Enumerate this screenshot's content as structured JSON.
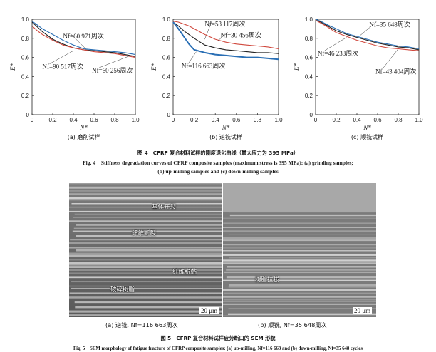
{
  "figure4": {
    "caption_cn": "图 4　CFRP 复合材料试样的刚度退化曲线（最大应力为 395 MPa）",
    "caption_en_line1": "Fig. 4　Stiffness degradation curves of CFRP composite samples (maximum stress is 395 MPa): (a) grinding samples;",
    "caption_en_line2": "(b) up-milling samples and (c) down-milling samples",
    "panels": [
      {
        "caption": "(a) 磨削试样",
        "xlabel": "N*",
        "ylabel": "E*",
        "annotations": [
          "Nf=60 971周次",
          "Nf=90 517周次",
          "Nf=60 256周次"
        ]
      },
      {
        "caption": "(b) 逆铣试样",
        "xlabel": "N*",
        "ylabel": "E*",
        "annotations": [
          "Nf=53 117周次",
          "Nf=30 456周次",
          "Nf=116 663周次"
        ]
      },
      {
        "caption": "(c) 顺铣试样",
        "xlabel": "N*",
        "ylabel": "E*",
        "annotations": [
          "Nf=35 648周次",
          "Nf=46 233周次",
          "Nf=43 404周次"
        ]
      }
    ],
    "yticks": [
      "0",
      "0.2",
      "0.4",
      "0.6",
      "0.8",
      "1.0"
    ],
    "xticks": [
      "0",
      "0.2",
      "0.4",
      "0.6",
      "0.8",
      "1.0"
    ]
  },
  "chart_data": [
    {
      "type": "line",
      "xlabel": "N*",
      "ylabel": "E*",
      "xlim": [
        0,
        1
      ],
      "ylim": [
        0,
        1
      ],
      "series": [
        {
          "name": "Nf=60 971周次",
          "color": "#2a6fb5",
          "x": [
            0,
            0.05,
            0.1,
            0.2,
            0.3,
            0.4,
            0.5,
            0.6,
            0.7,
            0.8,
            0.9,
            1.0
          ],
          "y": [
            0.98,
            0.94,
            0.9,
            0.84,
            0.78,
            0.73,
            0.69,
            0.68,
            0.67,
            0.66,
            0.65,
            0.63
          ]
        },
        {
          "name": "Nf=90 517周次",
          "color": "#222222",
          "x": [
            0,
            0.05,
            0.1,
            0.2,
            0.3,
            0.4,
            0.5,
            0.6,
            0.7,
            0.8,
            0.9,
            1.0
          ],
          "y": [
            0.97,
            0.92,
            0.87,
            0.79,
            0.74,
            0.7,
            0.68,
            0.67,
            0.66,
            0.65,
            0.63,
            0.61
          ]
        },
        {
          "name": "Nf=60 256周次",
          "color": "#d0483d",
          "x": [
            0,
            0.05,
            0.1,
            0.2,
            0.3,
            0.4,
            0.5,
            0.6,
            0.7,
            0.8,
            0.9,
            1.0
          ],
          "y": [
            0.93,
            0.88,
            0.84,
            0.78,
            0.73,
            0.7,
            0.68,
            0.66,
            0.65,
            0.64,
            0.62,
            0.6
          ]
        }
      ]
    },
    {
      "type": "line",
      "xlabel": "N*",
      "ylabel": "E*",
      "xlim": [
        0,
        1
      ],
      "ylim": [
        0,
        1
      ],
      "series": [
        {
          "name": "Nf=53 117周次",
          "color": "#222222",
          "x": [
            0,
            0.05,
            0.1,
            0.15,
            0.2,
            0.3,
            0.4,
            0.5,
            0.6,
            0.7,
            0.8,
            0.9,
            1.0
          ],
          "y": [
            0.97,
            0.93,
            0.88,
            0.84,
            0.8,
            0.73,
            0.7,
            0.68,
            0.67,
            0.66,
            0.65,
            0.65,
            0.64
          ]
        },
        {
          "name": "Nf=30 456周次",
          "color": "#d0483d",
          "x": [
            0,
            0.05,
            0.1,
            0.15,
            0.2,
            0.3,
            0.4,
            0.5,
            0.6,
            0.7,
            0.8,
            0.9,
            1.0
          ],
          "y": [
            0.98,
            0.97,
            0.95,
            0.93,
            0.9,
            0.84,
            0.79,
            0.76,
            0.74,
            0.73,
            0.72,
            0.71,
            0.69
          ]
        },
        {
          "name": "Nf=116 663周次",
          "color": "#2a6fb5",
          "x": [
            0,
            0.05,
            0.1,
            0.15,
            0.2,
            0.3,
            0.4,
            0.5,
            0.6,
            0.7,
            0.8,
            0.9,
            1.0
          ],
          "y": [
            0.97,
            0.9,
            0.82,
            0.74,
            0.68,
            0.65,
            0.63,
            0.62,
            0.61,
            0.6,
            0.6,
            0.59,
            0.58
          ]
        }
      ]
    },
    {
      "type": "line",
      "xlabel": "N*",
      "ylabel": "E*",
      "xlim": [
        0,
        1
      ],
      "ylim": [
        0,
        1
      ],
      "series": [
        {
          "name": "Nf=35 648周次",
          "color": "#2a6fb5",
          "x": [
            0,
            0.05,
            0.1,
            0.2,
            0.3,
            0.4,
            0.5,
            0.6,
            0.7,
            0.8,
            0.9,
            1.0
          ],
          "y": [
            1.0,
            0.98,
            0.95,
            0.9,
            0.85,
            0.82,
            0.79,
            0.76,
            0.74,
            0.72,
            0.71,
            0.69
          ]
        },
        {
          "name": "Nf=46 233周次",
          "color": "#222222",
          "x": [
            0,
            0.05,
            0.1,
            0.2,
            0.3,
            0.4,
            0.5,
            0.6,
            0.7,
            0.8,
            0.9,
            1.0
          ],
          "y": [
            0.99,
            0.97,
            0.94,
            0.88,
            0.84,
            0.81,
            0.78,
            0.75,
            0.73,
            0.71,
            0.7,
            0.68
          ]
        },
        {
          "name": "Nf=43 404周次",
          "color": "#d0483d",
          "x": [
            0,
            0.05,
            0.1,
            0.2,
            0.3,
            0.4,
            0.5,
            0.6,
            0.7,
            0.8,
            0.9,
            1.0
          ],
          "y": [
            0.99,
            0.96,
            0.93,
            0.86,
            0.82,
            0.78,
            0.75,
            0.72,
            0.7,
            0.69,
            0.68,
            0.67
          ]
        }
      ]
    }
  ],
  "figure5": {
    "caption": "图 5　CFRP 复合材料试样疲劳断口的 SEM 形貌",
    "caption_en": "Fig. 5　SEM morphology of fatigue fracture of CFRP composite samples: (a) up-milling, Nf=116 663 and (b) down-milling, Nf=35 648 cycles",
    "left": {
      "subcaption": "(a) 逆铣, Nf=116 663周次",
      "labels": [
        "基体开裂",
        "纤维断裂",
        "纤维脱黏",
        "破碎树脂"
      ],
      "scale": "20 μm"
    },
    "right": {
      "subcaption": "(b) 顺铣, Nf=35 648周次",
      "labels": [
        "树脂拉拔"
      ],
      "scale": "20 μm"
    }
  }
}
